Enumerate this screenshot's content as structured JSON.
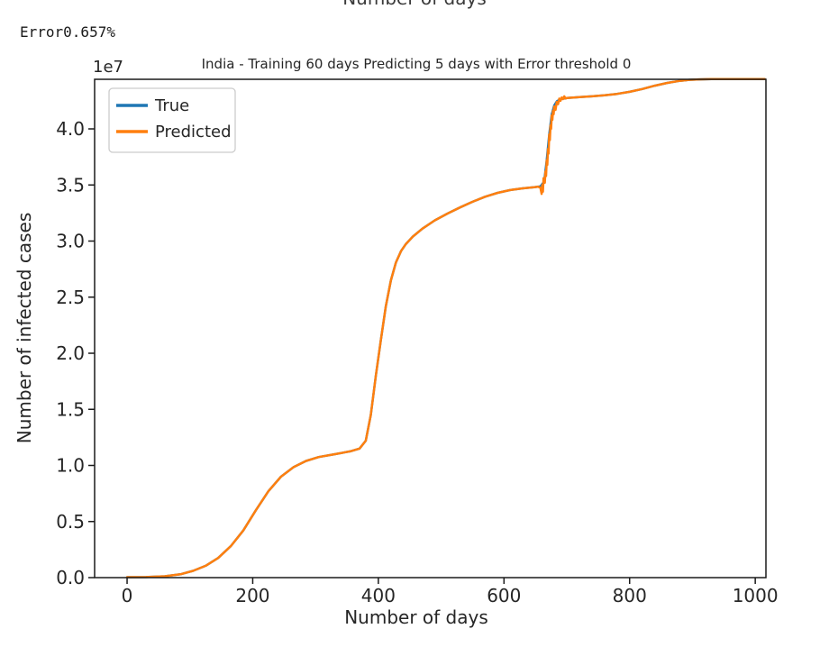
{
  "page": {
    "clipped_top_text": "Number of days",
    "error_text": "Error0.657%"
  },
  "chart_data": {
    "type": "line",
    "title": "India - Training 60 days Predicting 5 days with Error threshold 0",
    "xlabel": "Number of days",
    "ylabel": "Number of infected cases",
    "y_offset_text": "1e7",
    "grid": false,
    "legend_position": "upper left",
    "x_ticks": [
      0,
      200,
      400,
      600,
      800,
      1000
    ],
    "y_ticks": [
      "0.0",
      "0.5",
      "1.0",
      "1.5",
      "2.0",
      "2.5",
      "3.0",
      "3.5",
      "4.0"
    ],
    "xlim": [
      -51.7,
      1017
    ],
    "ylim_1e7": [
      0,
      4.442
    ],
    "y_unit": "1e7 infected cases",
    "series": [
      {
        "name": "True",
        "color": "#1f77b4",
        "points": [
          [
            0,
            0.004
          ],
          [
            30,
            0.005
          ],
          [
            60,
            0.012
          ],
          [
            85,
            0.03
          ],
          [
            105,
            0.06
          ],
          [
            125,
            0.105
          ],
          [
            145,
            0.175
          ],
          [
            165,
            0.28
          ],
          [
            185,
            0.42
          ],
          [
            205,
            0.6
          ],
          [
            225,
            0.77
          ],
          [
            245,
            0.9
          ],
          [
            265,
            0.985
          ],
          [
            285,
            1.04
          ],
          [
            305,
            1.075
          ],
          [
            330,
            1.1
          ],
          [
            355,
            1.125
          ],
          [
            370,
            1.15
          ],
          [
            380,
            1.22
          ],
          [
            388,
            1.45
          ],
          [
            396,
            1.8
          ],
          [
            404,
            2.12
          ],
          [
            412,
            2.42
          ],
          [
            420,
            2.65
          ],
          [
            428,
            2.81
          ],
          [
            436,
            2.91
          ],
          [
            444,
            2.975
          ],
          [
            455,
            3.04
          ],
          [
            470,
            3.11
          ],
          [
            490,
            3.185
          ],
          [
            510,
            3.245
          ],
          [
            530,
            3.3
          ],
          [
            550,
            3.35
          ],
          [
            570,
            3.395
          ],
          [
            590,
            3.43
          ],
          [
            610,
            3.455
          ],
          [
            630,
            3.47
          ],
          [
            648,
            3.48
          ],
          [
            658,
            3.487
          ],
          [
            664,
            3.53
          ],
          [
            668,
            3.72
          ],
          [
            672,
            3.95
          ],
          [
            676,
            4.13
          ],
          [
            680,
            4.21
          ],
          [
            684,
            4.245
          ],
          [
            690,
            4.265
          ],
          [
            700,
            4.275
          ],
          [
            720,
            4.283
          ],
          [
            740,
            4.29
          ],
          [
            760,
            4.3
          ],
          [
            780,
            4.312
          ],
          [
            800,
            4.33
          ],
          [
            820,
            4.355
          ],
          [
            840,
            4.385
          ],
          [
            860,
            4.41
          ],
          [
            880,
            4.428
          ],
          [
            895,
            4.437
          ],
          [
            910,
            4.441
          ],
          [
            930,
            4.4435
          ],
          [
            960,
            4.4445
          ],
          [
            1015,
            4.4445
          ]
        ]
      },
      {
        "name": "Predicted",
        "color": "#ff7f0e",
        "points": [
          [
            0,
            0.004
          ],
          [
            30,
            0.005
          ],
          [
            60,
            0.012
          ],
          [
            85,
            0.03
          ],
          [
            105,
            0.06
          ],
          [
            125,
            0.105
          ],
          [
            145,
            0.175
          ],
          [
            165,
            0.28
          ],
          [
            185,
            0.42
          ],
          [
            205,
            0.6
          ],
          [
            225,
            0.77
          ],
          [
            245,
            0.9
          ],
          [
            265,
            0.985
          ],
          [
            285,
            1.04
          ],
          [
            305,
            1.075
          ],
          [
            330,
            1.1
          ],
          [
            355,
            1.125
          ],
          [
            370,
            1.15
          ],
          [
            380,
            1.22
          ],
          [
            388,
            1.45
          ],
          [
            396,
            1.8
          ],
          [
            404,
            2.12
          ],
          [
            412,
            2.42
          ],
          [
            420,
            2.65
          ],
          [
            428,
            2.81
          ],
          [
            436,
            2.91
          ],
          [
            444,
            2.975
          ],
          [
            455,
            3.04
          ],
          [
            470,
            3.11
          ],
          [
            490,
            3.185
          ],
          [
            510,
            3.245
          ],
          [
            530,
            3.3
          ],
          [
            550,
            3.35
          ],
          [
            570,
            3.395
          ],
          [
            590,
            3.43
          ],
          [
            610,
            3.455
          ],
          [
            630,
            3.47
          ],
          [
            648,
            3.48
          ],
          [
            654,
            3.485
          ],
          [
            658,
            3.475
          ],
          [
            660,
            3.42
          ],
          [
            661,
            3.5
          ],
          [
            662,
            3.44
          ],
          [
            663,
            3.56
          ],
          [
            665,
            3.52
          ],
          [
            666,
            3.62
          ],
          [
            667,
            3.58
          ],
          [
            668,
            3.72
          ],
          [
            669,
            3.68
          ],
          [
            670,
            3.82
          ],
          [
            671,
            3.78
          ],
          [
            672,
            3.95
          ],
          [
            673,
            3.9
          ],
          [
            674,
            4.03
          ],
          [
            675,
            4.0
          ],
          [
            676,
            4.12
          ],
          [
            677,
            4.08
          ],
          [
            678,
            4.16
          ],
          [
            679,
            4.13
          ],
          [
            680,
            4.2
          ],
          [
            682,
            4.17
          ],
          [
            684,
            4.24
          ],
          [
            686,
            4.22
          ],
          [
            688,
            4.27
          ],
          [
            690,
            4.25
          ],
          [
            692,
            4.28
          ],
          [
            694,
            4.265
          ],
          [
            696,
            4.29
          ],
          [
            698,
            4.27
          ],
          [
            700,
            4.275
          ],
          [
            720,
            4.283
          ],
          [
            740,
            4.29
          ],
          [
            760,
            4.3
          ],
          [
            780,
            4.312
          ],
          [
            800,
            4.33
          ],
          [
            820,
            4.355
          ],
          [
            840,
            4.385
          ],
          [
            860,
            4.41
          ],
          [
            880,
            4.428
          ],
          [
            895,
            4.437
          ],
          [
            910,
            4.441
          ],
          [
            930,
            4.4435
          ],
          [
            960,
            4.4445
          ],
          [
            1015,
            4.4445
          ]
        ]
      }
    ]
  }
}
